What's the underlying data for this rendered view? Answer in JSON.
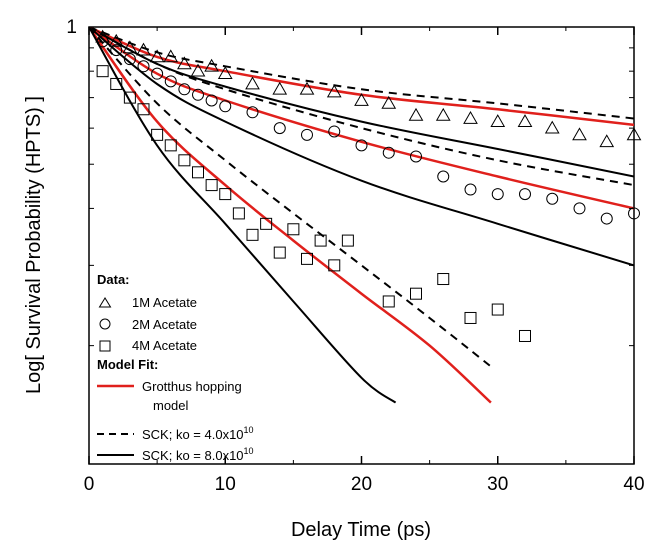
{
  "chart_data": {
    "type": "scatter",
    "title": "",
    "xlabel": "Delay Time (ps)",
    "ylabel": "Log[ Survival Probability (HPTS) ]",
    "xlim": [
      0,
      40
    ],
    "ylim": [
      0.11,
      1
    ],
    "yscale": "log",
    "x_ticks": [
      "0",
      "10",
      "20",
      "30",
      "40"
    ],
    "y_ticks": [
      "1"
    ],
    "grid": false,
    "legend_position": "bottom-left",
    "legend": {
      "data_header": "Data:",
      "model_header": "Model Fit:",
      "series": [
        "1M Acetate",
        "2M Acetate",
        "4M Acetate"
      ],
      "red_line_label_1": "Grotthus hopping",
      "red_line_label_2": "model",
      "dashed_label": "SCK; ko = 4.0x10",
      "dashed_exp": "10",
      "solid_label": "SCK; ko = 8.0x10",
      "solid_exp": "10"
    },
    "series": [
      {
        "name": "1M Acetate",
        "marker": "triangle",
        "x": [
          1,
          2,
          3,
          4,
          5,
          6,
          7,
          8,
          9,
          10,
          12,
          14,
          16,
          18,
          20,
          22,
          24,
          26,
          28,
          30,
          32,
          34,
          36,
          38,
          40
        ],
        "y": [
          0.95,
          0.93,
          0.9,
          0.89,
          0.86,
          0.86,
          0.83,
          0.8,
          0.82,
          0.79,
          0.75,
          0.73,
          0.73,
          0.72,
          0.69,
          0.68,
          0.64,
          0.64,
          0.63,
          0.62,
          0.62,
          0.6,
          0.58,
          0.56,
          0.58
        ]
      },
      {
        "name": "2M Acetate",
        "marker": "circle",
        "x": [
          1,
          2,
          3,
          4,
          5,
          6,
          7,
          8,
          9,
          10,
          12,
          14,
          16,
          18,
          20,
          22,
          24,
          26,
          28,
          30,
          32,
          34,
          36,
          38,
          40
        ],
        "y": [
          0.93,
          0.89,
          0.85,
          0.82,
          0.79,
          0.76,
          0.73,
          0.71,
          0.69,
          0.67,
          0.65,
          0.6,
          0.58,
          0.59,
          0.55,
          0.53,
          0.52,
          0.47,
          0.44,
          0.43,
          0.43,
          0.42,
          0.4,
          0.38,
          0.39
        ]
      },
      {
        "name": "4M Acetate",
        "marker": "square",
        "x": [
          1,
          2,
          3,
          4,
          5,
          6,
          7,
          8,
          9,
          10,
          11,
          12,
          13,
          14,
          15,
          16,
          17,
          18,
          19,
          22,
          24,
          26,
          28,
          30,
          32
        ],
        "y": [
          0.8,
          0.75,
          0.7,
          0.66,
          0.58,
          0.55,
          0.51,
          0.48,
          0.45,
          0.43,
          0.39,
          0.35,
          0.37,
          0.32,
          0.36,
          0.31,
          0.34,
          0.3,
          0.34,
          0.25,
          0.26,
          0.28,
          0.23,
          0.24,
          0.21
        ]
      }
    ],
    "fit_lines": [
      {
        "style": "red-solid",
        "x": [
          0,
          5,
          10,
          20,
          30,
          40
        ],
        "y": [
          1.0,
          0.86,
          0.8,
          0.71,
          0.66,
          0.61
        ]
      },
      {
        "style": "black-dashed",
        "x": [
          0,
          5,
          10,
          20,
          30,
          40
        ],
        "y": [
          1.0,
          0.88,
          0.82,
          0.73,
          0.68,
          0.63
        ]
      },
      {
        "style": "black-solid",
        "x": [
          0,
          5,
          10,
          20,
          30,
          40
        ],
        "y": [
          1.0,
          0.83,
          0.74,
          0.62,
          0.54,
          0.47
        ]
      },
      {
        "style": "red-solid",
        "x": [
          0,
          5,
          10,
          20,
          30,
          40
        ],
        "y": [
          1.0,
          0.79,
          0.69,
          0.56,
          0.47,
          0.4
        ]
      },
      {
        "style": "black-dashed",
        "x": [
          0,
          5,
          10,
          20,
          30,
          40
        ],
        "y": [
          1.0,
          0.83,
          0.73,
          0.6,
          0.51,
          0.45
        ]
      },
      {
        "style": "black-solid",
        "x": [
          0,
          5,
          10,
          20,
          30,
          40
        ],
        "y": [
          1.0,
          0.75,
          0.62,
          0.46,
          0.37,
          0.3
        ]
      },
      {
        "style": "red-solid",
        "x": [
          0,
          5,
          10,
          15,
          20,
          25,
          29.5
        ],
        "y": [
          1.0,
          0.62,
          0.45,
          0.34,
          0.26,
          0.2,
          0.15
        ]
      },
      {
        "style": "black-dashed",
        "x": [
          0,
          5,
          10,
          15,
          20,
          25,
          29.5
        ],
        "y": [
          1.0,
          0.68,
          0.51,
          0.39,
          0.3,
          0.23,
          0.18
        ]
      },
      {
        "style": "black-solid",
        "x": [
          0,
          5,
          10,
          15,
          20,
          22.5
        ],
        "y": [
          1.0,
          0.55,
          0.37,
          0.25,
          0.17,
          0.15
        ]
      }
    ]
  }
}
